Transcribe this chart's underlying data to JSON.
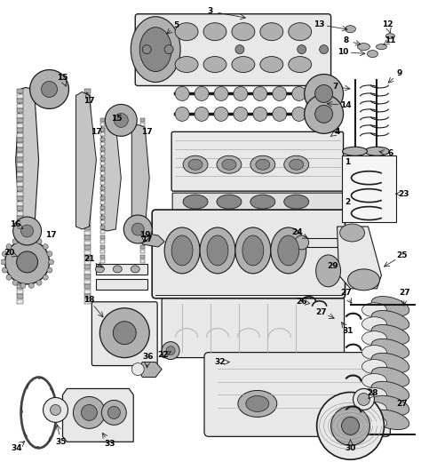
{
  "bg_color": "#ffffff",
  "line_color": "#1a1a1a",
  "fig_w": 4.74,
  "fig_h": 5.2,
  "dpi": 100,
  "gray_light": "#d4d4d4",
  "gray_mid": "#b0b0b0",
  "gray_dark": "#888888",
  "gray_very_light": "#e8e8e8"
}
